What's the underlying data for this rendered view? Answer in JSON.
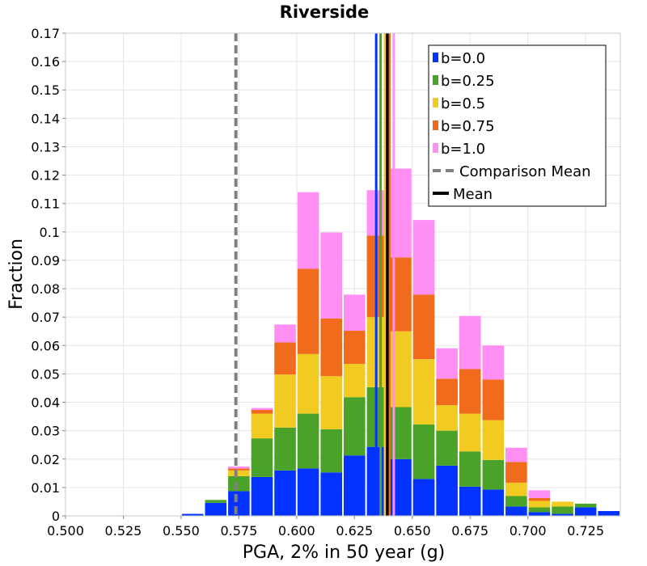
{
  "chart_data": {
    "type": "bar",
    "stacked": true,
    "title": "Riverside",
    "xlabel": "PGA, 2% in 50 year (g)",
    "ylabel": "Fraction",
    "xlim": [
      0.5,
      0.74
    ],
    "ylim": [
      0,
      0.17
    ],
    "bin_width": 0.01,
    "grid": true,
    "legend_position": "top-right",
    "x_ticks": [
      0.5,
      0.525,
      0.55,
      0.575,
      0.6,
      0.625,
      0.65,
      0.675,
      0.7,
      0.725
    ],
    "x_tick_labels": [
      "0.500",
      "0.525",
      "0.550",
      "0.575",
      "0.600",
      "0.625",
      "0.650",
      "0.675",
      "0.700",
      "0.725"
    ],
    "y_ticks": [
      0,
      0.01,
      0.02,
      0.03,
      0.04,
      0.05,
      0.06,
      0.07,
      0.08,
      0.09,
      0.1,
      0.11,
      0.12,
      0.13,
      0.14,
      0.15,
      0.16,
      0.17
    ],
    "y_tick_labels": [
      "0",
      "0.01",
      "0.02",
      "0.03",
      "0.04",
      "0.05",
      "0.06",
      "0.07",
      "0.08",
      "0.09",
      "0.1",
      "0.11",
      "0.12",
      "0.13",
      "0.14",
      "0.15",
      "0.16",
      "0.17"
    ],
    "bins": [
      0.555,
      0.565,
      0.575,
      0.585,
      0.595,
      0.605,
      0.615,
      0.625,
      0.635,
      0.645,
      0.655,
      0.665,
      0.675,
      0.685,
      0.695,
      0.705,
      0.715,
      0.725,
      0.735
    ],
    "series": [
      {
        "name": "b=0.0",
        "color": "#0433ff",
        "values": [
          0.0007,
          0.0046,
          0.0087,
          0.0137,
          0.016,
          0.0167,
          0.0153,
          0.0213,
          0.0243,
          0.02,
          0.013,
          0.0177,
          0.0103,
          0.0093,
          0.0033,
          0.0013,
          0.0007,
          0.003,
          0.0017
        ]
      },
      {
        "name": "b=0.25",
        "color": "#4ba228",
        "values": [
          0.0,
          0.001,
          0.0053,
          0.0136,
          0.0151,
          0.0193,
          0.0152,
          0.0205,
          0.021,
          0.0183,
          0.0192,
          0.0123,
          0.0124,
          0.0104,
          0.0037,
          0.0017,
          0.0026,
          0.0013,
          0.0
        ]
      },
      {
        "name": "b=0.5",
        "color": "#f2cb22",
        "values": [
          0.0,
          0.0,
          0.002,
          0.0087,
          0.0187,
          0.021,
          0.0187,
          0.0117,
          0.0247,
          0.0267,
          0.023,
          0.009,
          0.0133,
          0.014,
          0.0047,
          0.0023,
          0.0017,
          0.0,
          0.0
        ]
      },
      {
        "name": "b=0.75",
        "color": "#f06b1b",
        "values": [
          0.0,
          0.0,
          0.0007,
          0.0013,
          0.0113,
          0.03,
          0.0203,
          0.0117,
          0.0287,
          0.026,
          0.0227,
          0.0093,
          0.0157,
          0.0143,
          0.0073,
          0.001,
          0.0,
          0.0,
          0.0
        ]
      },
      {
        "name": "b=1.0",
        "color": "#ff8ff3",
        "values": [
          0.0,
          0.0,
          0.0007,
          0.0007,
          0.0063,
          0.027,
          0.0303,
          0.0127,
          0.016,
          0.0313,
          0.0263,
          0.0107,
          0.0187,
          0.012,
          0.005,
          0.0027,
          0.0,
          0.0,
          0.0
        ]
      }
    ],
    "vertical_lines": [
      {
        "name": "Comparison Mean",
        "x": 0.5737,
        "color": "#808080",
        "style": "dashed"
      },
      {
        "name": "Mean",
        "x": 0.6392,
        "color": "#000000",
        "style": "solid"
      }
    ],
    "series_means": [
      {
        "series": "b=0.0",
        "x": 0.6344,
        "color": "#0433ff"
      },
      {
        "series": "b=0.25",
        "x": 0.6363,
        "color": "#4ba228"
      },
      {
        "series": "b=0.5",
        "x": 0.6382,
        "color": "#f2cb22"
      },
      {
        "series": "b=0.75",
        "x": 0.6401,
        "color": "#f06b1b"
      },
      {
        "series": "b=1.0",
        "x": 0.642,
        "color": "#ff8ff3"
      }
    ],
    "legend": [
      {
        "label": "b=0.0",
        "color": "#0433ff",
        "kind": "box"
      },
      {
        "label": "b=0.25",
        "color": "#4ba228",
        "kind": "box"
      },
      {
        "label": "b=0.5",
        "color": "#f2cb22",
        "kind": "box"
      },
      {
        "label": "b=0.75",
        "color": "#f06b1b",
        "kind": "box"
      },
      {
        "label": "b=1.0",
        "color": "#ff8ff3",
        "kind": "box"
      },
      {
        "label": "Comparison Mean",
        "color": "#808080",
        "kind": "dashed"
      },
      {
        "label": "Mean",
        "color": "#000000",
        "kind": "solid"
      }
    ]
  }
}
